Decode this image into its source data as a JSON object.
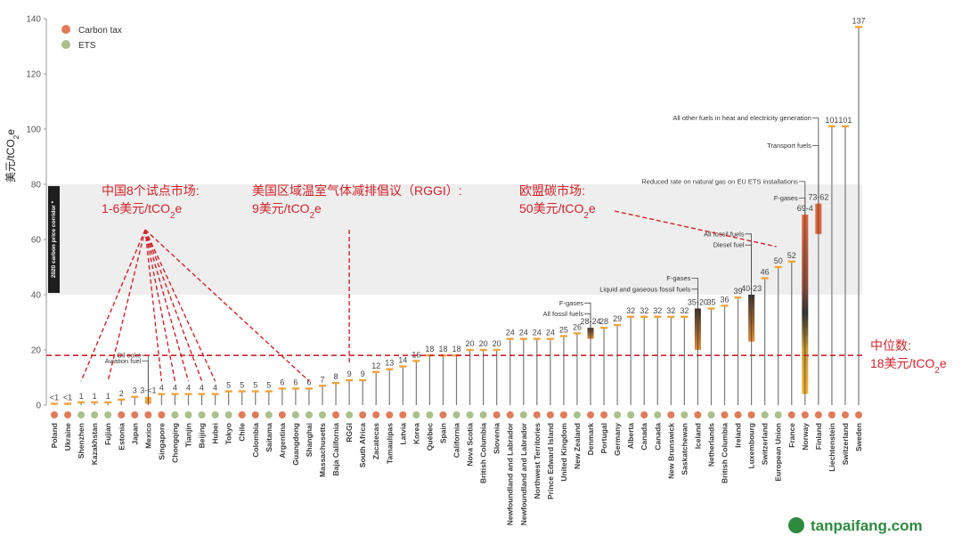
{
  "chart_data": {
    "type": "bar",
    "ylabel": "美元/tCO2e",
    "ylim": [
      0,
      140
    ],
    "yticks": [
      0,
      20,
      40,
      60,
      80,
      100,
      120,
      140
    ],
    "corridor": {
      "label": "2020 carbon price corridor *",
      "range": [
        40,
        80
      ]
    },
    "legend": [
      {
        "name": "Carbon tax",
        "color": "#e07b5a"
      },
      {
        "name": "ETS",
        "color": "#a9c08a"
      }
    ],
    "median": {
      "value": 18,
      "label_line1": "中位数:",
      "label_line2": "18美元/tCO2e"
    },
    "points": [
      {
        "name": "Poland",
        "type": "tax",
        "label": "<1",
        "low": 0,
        "high": 0.5
      },
      {
        "name": "Ukraine",
        "type": "tax",
        "label": "<1",
        "low": 0,
        "high": 0.5
      },
      {
        "name": "Shenzhen",
        "type": "ets",
        "label": "1",
        "low": 0,
        "high": 1
      },
      {
        "name": "Kazakhstan",
        "type": "ets",
        "label": "1",
        "low": 0,
        "high": 1
      },
      {
        "name": "Fujian",
        "type": "ets",
        "label": "1",
        "low": 0,
        "high": 1
      },
      {
        "name": "Estonia",
        "type": "tax",
        "label": "2",
        "low": 0,
        "high": 2
      },
      {
        "name": "Japan",
        "type": "tax",
        "label": "3",
        "low": 0,
        "high": 3
      },
      {
        "name": "Mexico",
        "type": "tax",
        "label": "3-<1",
        "low": 0.5,
        "high": 3,
        "range": true
      },
      {
        "name": "Singapore",
        "type": "tax",
        "label": "4",
        "low": 0,
        "high": 4
      },
      {
        "name": "Chongqing",
        "type": "ets",
        "label": "4",
        "low": 0,
        "high": 4
      },
      {
        "name": "Tianjin",
        "type": "ets",
        "label": "4",
        "low": 0,
        "high": 4
      },
      {
        "name": "Beijing",
        "type": "ets",
        "label": "4",
        "low": 0,
        "high": 4
      },
      {
        "name": "Hubei",
        "type": "ets",
        "label": "4",
        "low": 0,
        "high": 4
      },
      {
        "name": "Tokyo",
        "type": "ets",
        "label": "5",
        "low": 0,
        "high": 5
      },
      {
        "name": "Chile",
        "type": "tax",
        "label": "5",
        "low": 0,
        "high": 5
      },
      {
        "name": "Colombia",
        "type": "tax",
        "label": "5",
        "low": 0,
        "high": 5
      },
      {
        "name": "Saitama",
        "type": "ets",
        "label": "5",
        "low": 0,
        "high": 5
      },
      {
        "name": "Argentina",
        "type": "tax",
        "label": "6",
        "low": 0,
        "high": 6
      },
      {
        "name": "Guangdong",
        "type": "ets",
        "label": "6",
        "low": 0,
        "high": 6
      },
      {
        "name": "Shanghai",
        "type": "ets",
        "label": "6",
        "low": 0,
        "high": 6
      },
      {
        "name": "Massachusetts",
        "type": "ets",
        "label": "7",
        "low": 0,
        "high": 7
      },
      {
        "name": "Baja California",
        "type": "tax",
        "label": "8",
        "low": 0,
        "high": 8
      },
      {
        "name": "RGGI",
        "type": "ets",
        "label": "9",
        "low": 0,
        "high": 9
      },
      {
        "name": "South Africa",
        "type": "tax",
        "label": "9",
        "low": 0,
        "high": 9
      },
      {
        "name": "Zacatecas",
        "type": "tax",
        "label": "12",
        "low": 0,
        "high": 12
      },
      {
        "name": "Tamaulipas",
        "type": "tax",
        "label": "13",
        "low": 0,
        "high": 13
      },
      {
        "name": "Latvia",
        "type": "tax",
        "label": "14",
        "low": 0,
        "high": 14
      },
      {
        "name": "Korea",
        "type": "ets",
        "label": "16",
        "low": 0,
        "high": 16
      },
      {
        "name": "Québec",
        "type": "ets",
        "label": "18",
        "low": 0,
        "high": 18
      },
      {
        "name": "Spain",
        "type": "tax",
        "label": "18",
        "low": 0,
        "high": 18
      },
      {
        "name": "California",
        "type": "ets",
        "label": "18",
        "low": 0,
        "high": 18
      },
      {
        "name": "Nova Scotia",
        "type": "ets",
        "label": "20",
        "low": 0,
        "high": 20
      },
      {
        "name": "British Columbia",
        "type": "ets",
        "label": "20",
        "low": 0,
        "high": 20
      },
      {
        "name": "Slovenia",
        "type": "tax",
        "label": "20",
        "low": 0,
        "high": 20
      },
      {
        "name": "Newfoundland and Labrador",
        "type": "tax",
        "label": "24",
        "low": 0,
        "high": 24
      },
      {
        "name": "Newfoundland and Labrador",
        "type": "ets",
        "label": "24",
        "low": 0,
        "high": 24
      },
      {
        "name": "Northwest Territories",
        "type": "tax",
        "label": "24",
        "low": 0,
        "high": 24
      },
      {
        "name": "Prince Edward Island",
        "type": "tax",
        "label": "24",
        "low": 0,
        "high": 24
      },
      {
        "name": "United Kingdom",
        "type": "tax",
        "label": "25",
        "low": 0,
        "high": 25
      },
      {
        "name": "New Zealand",
        "type": "ets",
        "label": "26",
        "low": 0,
        "high": 26
      },
      {
        "name": "Denmark",
        "type": "tax",
        "label": "28-24",
        "low": 24,
        "high": 28,
        "range": true
      },
      {
        "name": "Portugal",
        "type": "tax",
        "label": "28",
        "low": 0,
        "high": 28
      },
      {
        "name": "Germany",
        "type": "ets",
        "label": "29",
        "low": 0,
        "high": 29
      },
      {
        "name": "Alberta",
        "type": "ets",
        "label": "32",
        "low": 0,
        "high": 32
      },
      {
        "name": "Canada",
        "type": "tax",
        "label": "32",
        "low": 0,
        "high": 32
      },
      {
        "name": "Canada",
        "type": "ets",
        "label": "32",
        "low": 0,
        "high": 32
      },
      {
        "name": "New Brunswick",
        "type": "tax",
        "label": "32",
        "low": 0,
        "high": 32
      },
      {
        "name": "Saskatchewan",
        "type": "ets",
        "label": "32",
        "low": 0,
        "high": 32
      },
      {
        "name": "Iceland",
        "type": "tax",
        "label": "35-20",
        "low": 20,
        "high": 35,
        "range": true
      },
      {
        "name": "Netherlands",
        "type": "ets",
        "label": "35",
        "low": 0,
        "high": 35
      },
      {
        "name": "British Columbia",
        "type": "tax",
        "label": "36",
        "low": 0,
        "high": 36
      },
      {
        "name": "Ireland",
        "type": "tax",
        "label": "39",
        "low": 0,
        "high": 39
      },
      {
        "name": "Luxembourg",
        "type": "tax",
        "label": "40-23",
        "low": 23,
        "high": 40,
        "range": true
      },
      {
        "name": "Switzerland",
        "type": "ets",
        "label": "46",
        "low": 0,
        "high": 46
      },
      {
        "name": "European Union",
        "type": "ets",
        "label": "50",
        "low": 0,
        "high": 50
      },
      {
        "name": "France",
        "type": "tax",
        "label": "52",
        "low": 0,
        "high": 52
      },
      {
        "name": "Norway",
        "type": "tax",
        "label": "69-4",
        "low": 4,
        "high": 69,
        "range": true
      },
      {
        "name": "Finland",
        "type": "tax",
        "label": "73-62",
        "low": 62,
        "high": 73,
        "range": true
      },
      {
        "name": "Liechtenstein",
        "type": "tax",
        "label": "101",
        "low": 0,
        "high": 101
      },
      {
        "name": "Switzerland",
        "type": "tax",
        "label": "101",
        "low": 0,
        "high": 101
      },
      {
        "name": "Sweden",
        "type": "tax",
        "label": "137",
        "low": 0,
        "high": 137
      }
    ],
    "small_annotations": [
      {
        "text": "Oil coke",
        "point": 7,
        "value": 3,
        "at": 18
      },
      {
        "text": "Aviation fuel",
        "point": 7,
        "value": 0.5,
        "at": 16
      },
      {
        "text": "All fossil fuels",
        "point": 40,
        "value": 24,
        "at": 33
      },
      {
        "text": "F-gases",
        "point": 40,
        "value": 28,
        "at": 37
      },
      {
        "text": "Liquid and gaseous fossil fuels",
        "point": 48,
        "value": 20,
        "at": 42
      },
      {
        "text": "F-gases",
        "point": 48,
        "value": 35,
        "at": 46
      },
      {
        "text": "Diesel fuel",
        "point": 52,
        "value": 23,
        "at": 58
      },
      {
        "text": "All fossil fuels",
        "point": 52,
        "value": 40,
        "at": 62
      },
      {
        "text": "F-gases",
        "point": 56,
        "value": 69,
        "at": 75
      },
      {
        "text": "Reduced rate on natural gas on EU ETS installations",
        "point": 56,
        "value": 4,
        "at": 81
      },
      {
        "text": "Transport fuels",
        "point": 57,
        "value": 62,
        "at": 94
      },
      {
        "text": "All other fuels in heat and electricity generation",
        "point": 57,
        "value": 73,
        "at": 104
      }
    ],
    "callouts": [
      {
        "id": "china",
        "line1": "中国8个试点市场:",
        "line2": "1-6美元/tCO2e",
        "targets": [
          2,
          4,
          8,
          9,
          10,
          11,
          12,
          19
        ],
        "hub": 62
      },
      {
        "id": "rggi",
        "line1": "美国区域温室气体减排倡议（RGGI）:",
        "line2": "9美元/tCO2e",
        "targets": [
          22
        ]
      },
      {
        "id": "eu",
        "line1": "欧盟碳市场:",
        "line2": "50美元/tCO2e",
        "targets": [
          54
        ]
      }
    ]
  },
  "watermark": "tanpaifang.com",
  "colors": {
    "tax": "#e07b5a",
    "ets": "#a9c08a",
    "bar_line": "#7a7a7a",
    "cap": "#f2a33a",
    "corridor": "#eeeeee",
    "annotation_red": "#d2232a"
  }
}
